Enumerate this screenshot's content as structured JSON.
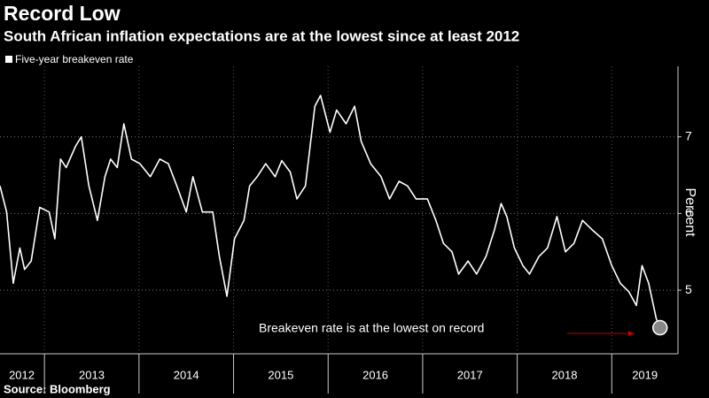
{
  "chart_data": {
    "type": "line",
    "title": "Record Low",
    "subtitle": "South African inflation expectations are at the lowest since at least 2012",
    "y_label": "Percent",
    "source": "Source: Bloomberg",
    "annotation": "Breakeven rate is at the lowest on record",
    "x": [
      2012.53,
      2012.6,
      2012.67,
      2012.74,
      2012.79,
      2012.86,
      2012.95,
      2013.05,
      2013.11,
      2013.17,
      2013.23,
      2013.33,
      2013.39,
      2013.47,
      2013.56,
      2013.64,
      2013.7,
      2013.77,
      2013.84,
      2013.92,
      2014.01,
      2014.12,
      2014.22,
      2014.31,
      2014.4,
      2014.5,
      2014.57,
      2014.67,
      2014.78,
      2014.85,
      2014.93,
      2015.01,
      2015.11,
      2015.17,
      2015.25,
      2015.34,
      2015.44,
      2015.51,
      2015.6,
      2015.67,
      2015.76,
      2015.86,
      2015.92,
      2016.02,
      2016.09,
      2016.19,
      2016.28,
      2016.35,
      2016.45,
      2016.56,
      2016.65,
      2016.75,
      2016.84,
      2016.93,
      2017.05,
      2017.14,
      2017.22,
      2017.31,
      2017.38,
      2017.48,
      2017.57,
      2017.67,
      2017.76,
      2017.83,
      2017.89,
      2017.97,
      2018.06,
      2018.13,
      2018.23,
      2018.32,
      2018.42,
      2018.51,
      2018.6,
      2018.69,
      2018.79,
      2018.9,
      2019.0,
      2019.09,
      2019.18,
      2019.26,
      2019.32,
      2019.39,
      2019.47,
      2019.51
    ],
    "series": [
      {
        "name": "Five-year breakeven rate",
        "color": "#ffffff",
        "values": [
          6.36,
          6.02,
          5.09,
          5.55,
          5.27,
          5.38,
          6.08,
          6.02,
          5.67,
          6.71,
          6.6,
          6.88,
          7.0,
          6.36,
          5.91,
          6.48,
          6.71,
          6.6,
          7.17,
          6.71,
          6.65,
          6.48,
          6.71,
          6.65,
          6.36,
          6.02,
          6.48,
          6.02,
          6.02,
          5.44,
          4.92,
          5.67,
          5.91,
          6.36,
          6.48,
          6.65,
          6.48,
          6.69,
          6.54,
          6.19,
          6.36,
          7.4,
          7.54,
          7.06,
          7.35,
          7.17,
          7.4,
          6.94,
          6.65,
          6.48,
          6.19,
          6.42,
          6.36,
          6.19,
          6.19,
          5.91,
          5.61,
          5.5,
          5.21,
          5.38,
          5.21,
          5.44,
          5.79,
          6.13,
          5.96,
          5.55,
          5.32,
          5.21,
          5.44,
          5.55,
          5.96,
          5.5,
          5.61,
          5.91,
          5.79,
          5.67,
          5.32,
          5.09,
          4.98,
          4.8,
          5.32,
          5.09,
          4.63,
          4.51
        ]
      }
    ],
    "xlim": [
      2012.53,
      2019.7
    ],
    "xticks": [
      {
        "value": 2012.76,
        "label": "2012"
      },
      {
        "value": 2013.5,
        "label": "2013"
      },
      {
        "value": 2014.5,
        "label": "2014"
      },
      {
        "value": 2015.5,
        "label": "2015"
      },
      {
        "value": 2016.5,
        "label": "2016"
      },
      {
        "value": 2017.5,
        "label": "2017"
      },
      {
        "value": 2018.5,
        "label": "2018"
      },
      {
        "value": 2019.35,
        "label": "2019"
      }
    ],
    "x_separators": [
      2013,
      2014,
      2015,
      2016,
      2017,
      2018,
      2019
    ],
    "ylim": [
      4.17,
      7.92
    ],
    "yticks": [
      5,
      6,
      7
    ],
    "grid": true
  }
}
